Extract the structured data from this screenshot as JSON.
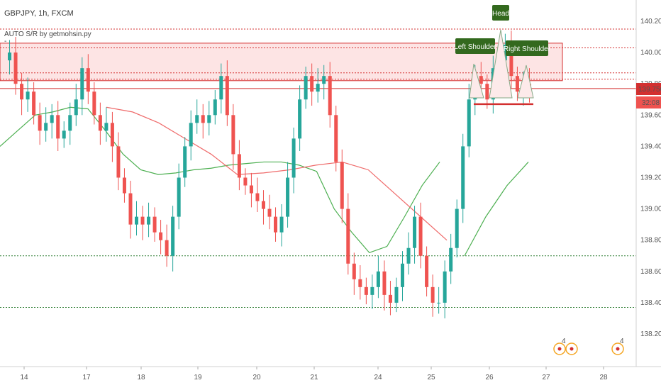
{
  "header": {
    "symbol_line": "GBPJPY, 1h, FXCM",
    "indicator_line": "AUTO S/R by getmohsin.py",
    "indicator_line2": "-"
  },
  "price_badge": {
    "price": "139.756",
    "countdown": "32:08"
  },
  "colors": {
    "up": "#26a69a",
    "down": "#ef5350",
    "resistance": "#d32f2f",
    "support": "#2e7d32",
    "ma_red": "#ef6b6b",
    "ma_green": "#4caf50",
    "label_bg": "#33691e",
    "zone_fill": "#fde4e4"
  },
  "pattern_labels": {
    "head": "Head",
    "left_shoulder": "Left Shoulder",
    "right_shoulder": "Right Shoulder"
  },
  "event_icons": [
    {
      "kind": "flag-circle-icon",
      "count": "4"
    },
    {
      "kind": "dot-circle-icon",
      "count": ""
    },
    {
      "kind": "flag-circle-icon",
      "count": "4"
    }
  ],
  "chart_data": {
    "type": "candlestick",
    "title": "GBPJPY, 1h, FXCM",
    "y_axis": {
      "ylim": [
        138.1,
        140.25
      ],
      "ticks": [
        140.2,
        140.0,
        139.8,
        139.6,
        139.4,
        139.2,
        139.0,
        138.8,
        138.6,
        138.4,
        138.2
      ],
      "tick_labels": [
        "140.200",
        "140.000",
        "139.800",
        "139.600",
        "139.400",
        "139.200",
        "139.000",
        "138.800",
        "138.600",
        "138.400",
        "138.200"
      ]
    },
    "x_axis": {
      "tick_labels": [
        "14",
        "17",
        "18",
        "19",
        "20",
        "21",
        "24",
        "25",
        "26",
        "27",
        "28"
      ]
    },
    "ohlc_series": [
      139.95,
      140.0,
      139.8,
      139.7,
      139.75,
      139.6,
      139.5,
      139.55,
      139.6,
      139.45,
      139.5,
      139.6,
      139.7,
      139.9,
      139.75,
      139.6,
      139.5,
      139.55,
      139.4,
      139.2,
      139.1,
      138.9,
      138.95,
      138.9,
      138.95,
      138.85,
      138.8,
      138.7,
      138.95,
      139.2,
      139.4,
      139.55,
      139.6,
      139.55,
      139.6,
      139.7,
      139.85,
      139.6,
      139.35,
      139.2,
      139.15,
      139.1,
      139.05,
      139.0,
      138.95,
      138.85,
      138.95,
      139.2,
      139.45,
      139.7,
      139.85,
      139.75,
      139.8,
      139.85,
      139.6,
      139.3,
      139.0,
      138.65,
      138.55,
      138.5,
      138.45,
      138.5,
      138.6,
      138.45,
      138.4,
      138.5,
      138.65,
      138.75,
      138.95,
      138.7,
      138.5,
      138.4,
      138.4,
      138.6,
      138.75,
      139.0,
      139.4,
      139.7,
      139.85,
      139.8,
      139.7,
      139.9,
      139.95,
      140.05,
      139.85,
      139.75,
      139.8,
      139.75
    ],
    "sr_levels": {
      "resistance": [
        140.15,
        140.03,
        139.87,
        139.83,
        139.77
      ],
      "support": [
        138.7,
        138.37
      ],
      "resistance_zone": [
        139.82,
        140.06
      ]
    },
    "moving_averages": [
      {
        "values": [
          139.4,
          139.5,
          139.6,
          139.62,
          139.65,
          139.64,
          139.5,
          139.35,
          139.25,
          139.22,
          139.23,
          139.25,
          139.26,
          139.28,
          139.29,
          139.3,
          139.3,
          139.28,
          139.24,
          139.0,
          138.85,
          138.72,
          138.76,
          138.95,
          139.15,
          139.3
        ]
      },
      {
        "values": [
          138.7,
          138.95,
          139.15,
          139.3
        ]
      }
    ],
    "annotations": [
      "Head",
      "Left Shoulder",
      "Right Shoulder"
    ]
  }
}
